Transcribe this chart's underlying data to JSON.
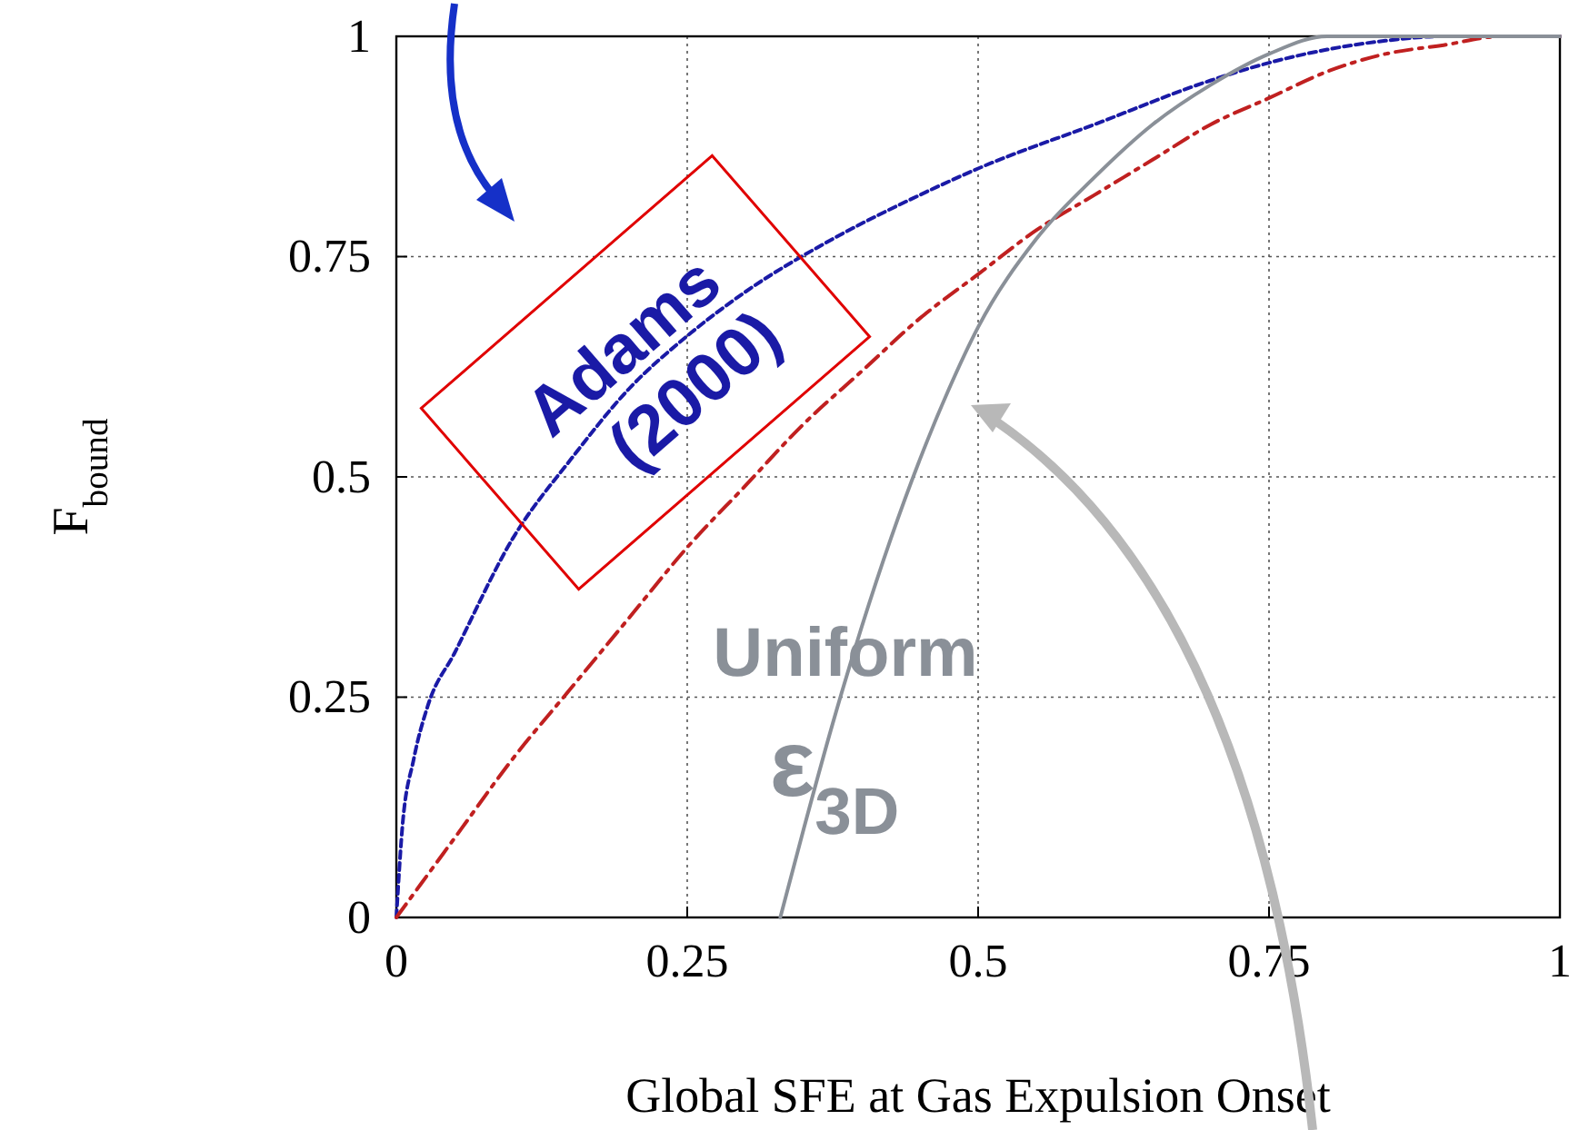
{
  "chart_data": {
    "type": "line",
    "xlabel": "Global SFE at Gas Expulsion Onset",
    "ylabel": "F$_{bound}$",
    "xlim": [
      0,
      1
    ],
    "ylim": [
      0,
      1
    ],
    "xticks": [
      0,
      0.25,
      0.5,
      0.75,
      1
    ],
    "yticks": [
      0,
      0.25,
      0.5,
      0.75,
      1
    ],
    "grid": true,
    "legend": false,
    "marker": "none",
    "series": [
      {
        "name": "Adams (2000)",
        "color": "#1a1aa6",
        "line_style": "dotted",
        "x": [
          0,
          0.005,
          0.015,
          0.027,
          0.05,
          0.1,
          0.15,
          0.2,
          0.25,
          0.3,
          0.375,
          0.45,
          0.5,
          0.6,
          0.7,
          0.75,
          0.8,
          0.85,
          0.9,
          0.95,
          1
        ],
        "values": [
          0,
          0.1,
          0.18,
          0.24,
          0.3,
          0.43,
          0.52,
          0.6,
          0.66,
          0.71,
          0.77,
          0.82,
          0.85,
          0.9,
          0.95,
          0.97,
          0.985,
          0.995,
          1,
          1,
          1
        ]
      },
      {
        "color": "#c02020",
        "line_style": "dashed",
        "x": [
          0,
          0.05,
          0.1,
          0.15,
          0.2,
          0.25,
          0.3,
          0.35,
          0.4,
          0.45,
          0.5,
          0.55,
          0.6,
          0.65,
          0.7,
          0.75,
          0.8,
          0.85,
          0.9,
          0.95,
          1
        ],
        "values": [
          0,
          0.09,
          0.18,
          0.26,
          0.34,
          0.42,
          0.49,
          0.56,
          0.62,
          0.68,
          0.73,
          0.78,
          0.82,
          0.86,
          0.9,
          0.93,
          0.96,
          0.98,
          0.99,
          1,
          1
        ]
      },
      {
        "name": "Uniform ε$_{3D}$",
        "color": "#8a9098",
        "line_style": "solid",
        "x": [
          0.33,
          0.35,
          0.375,
          0.4,
          0.425,
          0.45,
          0.475,
          0.5,
          0.55,
          0.6,
          0.65,
          0.7,
          0.75,
          0.8,
          0.85,
          0.9,
          1
        ],
        "values": [
          0,
          0.1,
          0.22,
          0.33,
          0.43,
          0.52,
          0.6,
          0.67,
          0.77,
          0.84,
          0.9,
          0.945,
          0.98,
          1,
          1,
          1,
          1
        ]
      }
    ]
  }
}
